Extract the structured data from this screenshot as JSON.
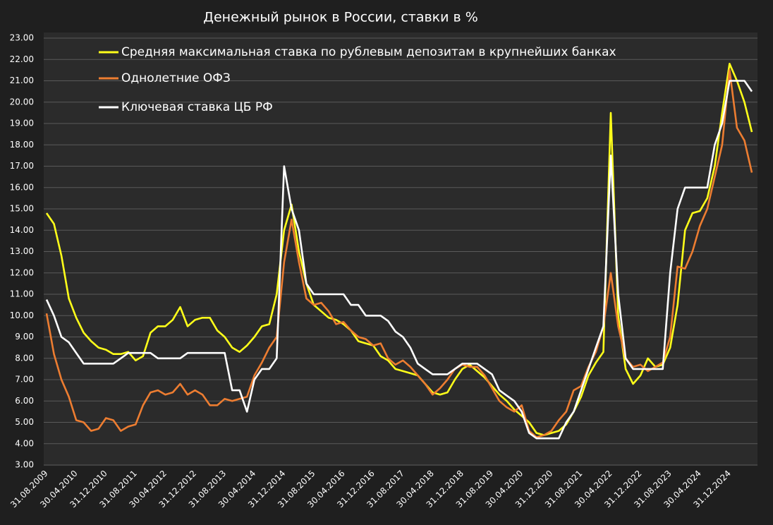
{
  "chart_data": {
    "type": "line",
    "title": "Денежный рынок в России, ставки в %",
    "categories": [
      "31.08.2009",
      null,
      null,
      null,
      "30.04.2010",
      null,
      null,
      null,
      "31.12.2010",
      null,
      null,
      null,
      "31.08.2011",
      null,
      null,
      null,
      "30.04.2012",
      null,
      null,
      null,
      "31.12.2012",
      null,
      null,
      null,
      "31.08.2013",
      null,
      null,
      null,
      "30.04.2014",
      null,
      null,
      null,
      "31.12.2014",
      null,
      null,
      null,
      "31.08.2015",
      null,
      null,
      null,
      "30.04.2016",
      null,
      null,
      null,
      "31.12.2016",
      null,
      null,
      null,
      "31.08.2017",
      null,
      null,
      null,
      "30.04.2018",
      null,
      null,
      null,
      "31.12.2018",
      null,
      null,
      null,
      "31.08.2019",
      null,
      null,
      null,
      "30.04.2020",
      null,
      null,
      null,
      "31.12.2020",
      null,
      null,
      null,
      "31.08.2021",
      null,
      null,
      null,
      "30.04.2022",
      null,
      null,
      null,
      "31.12.2022",
      null,
      null,
      null,
      "31.08.2023",
      null,
      null,
      null,
      "30.04.2024",
      null,
      null,
      null,
      "31.12.2024",
      null,
      null,
      null
    ],
    "series": [
      {
        "name": "Средняя максимальная ставка по рублевым депозитам в крупнейших банках",
        "color": "#ffff1a",
        "values": [
          14.8,
          14.3,
          12.8,
          10.8,
          9.9,
          9.2,
          8.8,
          8.5,
          8.4,
          8.2,
          8.2,
          8.3,
          7.9,
          8.1,
          9.2,
          9.5,
          9.5,
          9.8,
          10.4,
          9.5,
          9.8,
          9.9,
          9.9,
          9.3,
          9.0,
          8.5,
          8.3,
          8.6,
          9.0,
          9.5,
          9.6,
          11.0,
          14.0,
          15.2,
          13.0,
          11.5,
          10.5,
          10.2,
          9.9,
          9.8,
          9.6,
          9.3,
          8.8,
          8.7,
          8.6,
          8.1,
          7.9,
          7.5,
          7.4,
          7.3,
          7.2,
          6.8,
          6.4,
          6.3,
          6.4,
          7.0,
          7.5,
          7.7,
          7.4,
          7.1,
          6.7,
          6.3,
          6.0,
          5.6,
          5.3,
          5.0,
          4.5,
          4.4,
          4.5,
          4.6,
          4.9,
          5.5,
          6.2,
          7.2,
          7.8,
          8.3,
          19.5,
          10.0,
          7.5,
          6.8,
          7.2,
          8.0,
          7.6,
          7.7,
          8.5,
          10.5,
          14.0,
          14.8,
          14.9,
          15.5,
          17.0,
          19.5,
          21.8,
          21.0,
          20.0,
          18.6
        ]
      },
      {
        "name": "Однолетние ОФЗ",
        "color": "#ed7d31",
        "values": [
          10.1,
          8.2,
          7.0,
          6.2,
          5.1,
          5.0,
          4.6,
          4.7,
          5.2,
          5.1,
          4.6,
          4.8,
          4.9,
          5.8,
          6.4,
          6.5,
          6.3,
          6.4,
          6.8,
          6.3,
          6.5,
          6.3,
          5.8,
          5.8,
          6.1,
          6.0,
          6.1,
          6.2,
          7.2,
          7.8,
          8.5,
          9.0,
          12.5,
          14.5,
          12.5,
          10.8,
          10.5,
          10.6,
          10.2,
          9.6,
          9.7,
          9.3,
          9.0,
          8.9,
          8.6,
          8.7,
          8.0,
          7.7,
          7.9,
          7.6,
          7.2,
          6.8,
          6.3,
          6.6,
          7.0,
          7.5,
          7.7,
          7.6,
          7.6,
          7.2,
          6.6,
          6.0,
          5.7,
          5.5,
          5.8,
          4.6,
          4.3,
          4.4,
          4.6,
          5.1,
          5.5,
          6.5,
          6.7,
          7.6,
          8.3,
          9.5,
          12.0,
          9.5,
          8.0,
          7.6,
          7.7,
          7.4,
          7.6,
          7.8,
          9.0,
          12.3,
          12.2,
          13.0,
          14.2,
          15.0,
          16.5,
          18.0,
          21.5,
          18.8,
          18.2,
          16.7
        ]
      },
      {
        "name": "Ключевая ставка ЦБ РФ",
        "color": "#ffffff",
        "values": [
          10.75,
          10.0,
          9.0,
          8.75,
          8.25,
          7.75,
          7.75,
          7.75,
          7.75,
          7.75,
          8.0,
          8.25,
          8.25,
          8.25,
          8.25,
          8.0,
          8.0,
          8.0,
          8.0,
          8.25,
          8.25,
          8.25,
          8.25,
          8.25,
          8.25,
          6.5,
          6.5,
          5.5,
          7.0,
          7.5,
          7.5,
          8.0,
          17.0,
          15.0,
          14.0,
          11.5,
          11.0,
          11.0,
          11.0,
          11.0,
          11.0,
          10.5,
          10.5,
          10.0,
          10.0,
          10.0,
          9.75,
          9.25,
          9.0,
          8.5,
          7.75,
          7.5,
          7.25,
          7.25,
          7.25,
          7.5,
          7.75,
          7.75,
          7.75,
          7.5,
          7.25,
          6.5,
          6.25,
          6.0,
          5.5,
          4.5,
          4.25,
          4.25,
          4.25,
          4.25,
          5.0,
          5.5,
          6.5,
          7.5,
          8.5,
          9.5,
          17.5,
          11.0,
          8.0,
          7.5,
          7.5,
          7.5,
          7.5,
          7.5,
          12.0,
          15.0,
          16.0,
          16.0,
          16.0,
          16.0,
          18.0,
          19.0,
          21.0,
          21.0,
          21.0,
          20.5
        ]
      }
    ],
    "ylim": [
      3,
      23
    ],
    "yticks": [
      {
        "value": 3,
        "label": "3.00"
      },
      {
        "value": 4,
        "label": "4.00"
      },
      {
        "value": 5,
        "label": "5.00"
      },
      {
        "value": 6,
        "label": "6.00"
      },
      {
        "value": 7,
        "label": "7.00"
      },
      {
        "value": 8,
        "label": "8.00"
      },
      {
        "value": 9,
        "label": "9.00"
      },
      {
        "value": 10,
        "label": "10.00"
      },
      {
        "value": 11,
        "label": "11.00"
      },
      {
        "value": 12,
        "label": "12.00"
      },
      {
        "value": 13,
        "label": "13.00"
      },
      {
        "value": 14,
        "label": "14.00"
      },
      {
        "value": 15,
        "label": "15.00"
      },
      {
        "value": 16,
        "label": "16.00"
      },
      {
        "value": 17,
        "label": "17.00"
      },
      {
        "value": 18,
        "label": "18.00"
      },
      {
        "value": 19,
        "label": "19.00"
      },
      {
        "value": 20,
        "label": "20.00"
      },
      {
        "value": 21,
        "label": "21.00"
      },
      {
        "value": 22,
        "label": "22.00"
      },
      {
        "value": 23,
        "label": "23.00"
      }
    ],
    "grid": true,
    "legend": "upper left"
  }
}
